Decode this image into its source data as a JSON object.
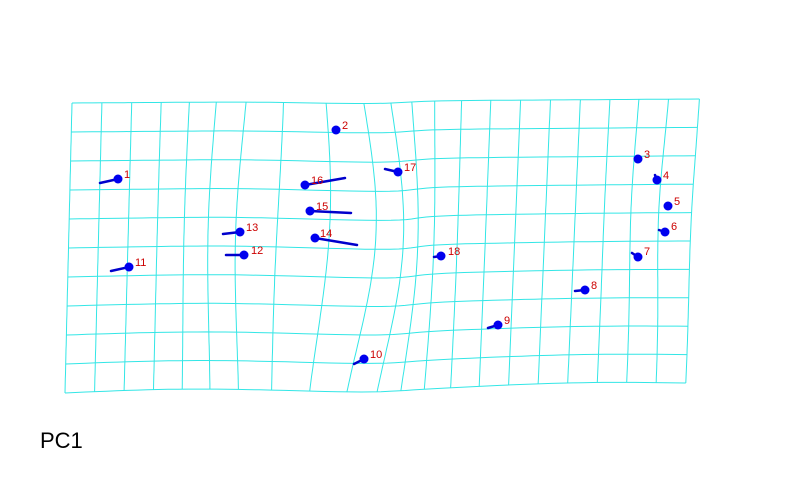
{
  "caption": "PC1",
  "colors": {
    "grid": "#33e6e6",
    "landmark": "#0000ee",
    "vector": "#0000cc",
    "label": "#cc0000"
  },
  "landmarks": [
    {
      "id": "1",
      "label": "1"
    },
    {
      "id": "2",
      "label": "2"
    },
    {
      "id": "3",
      "label": "3"
    },
    {
      "id": "4",
      "label": "4"
    },
    {
      "id": "5",
      "label": "5"
    },
    {
      "id": "6",
      "label": "6"
    },
    {
      "id": "7",
      "label": "7"
    },
    {
      "id": "8",
      "label": "8"
    },
    {
      "id": "9",
      "label": "9"
    },
    {
      "id": "10",
      "label": "10"
    },
    {
      "id": "11",
      "label": "11"
    },
    {
      "id": "12",
      "label": "12"
    },
    {
      "id": "13",
      "label": "13"
    },
    {
      "id": "14",
      "label": "14"
    },
    {
      "id": "15",
      "label": "15"
    },
    {
      "id": "16",
      "label": "16"
    },
    {
      "id": "17",
      "label": "17"
    },
    {
      "id": "18",
      "label": "18"
    }
  ]
}
